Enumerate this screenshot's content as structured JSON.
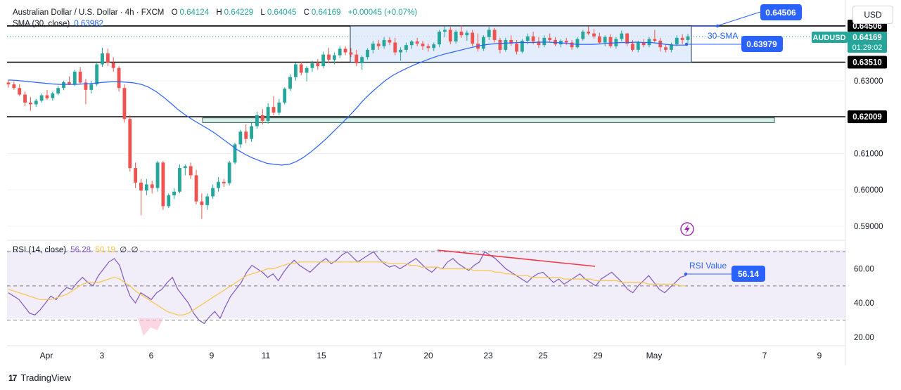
{
  "header": {
    "symbol_title": "Australian Dollar / U.S. Dollar · 4h · FXCM",
    "o_label": "O",
    "o_value": "0.64124",
    "h_label": "H",
    "h_value": "0.64229",
    "l_label": "L",
    "l_value": "0.64045",
    "c_label": "C",
    "c_value": "0.64169",
    "change": "+0.00045 (+0.07%)",
    "sma_label": "SMA (30, close)",
    "sma_value": "0.63982",
    "currency": "USD"
  },
  "rsi_legend": {
    "label": "RSI (14, close)",
    "rsi_value": "56.28",
    "ma_value": "50.19",
    "extra1": "∅",
    "extra2": "∅"
  },
  "annotations": {
    "level_top_label": "0.64506",
    "sma_note": "30-SMA",
    "sma_value_box": "0.63979",
    "rsi_note": "RSI Value",
    "rsi_value_box": "56.14",
    "symbol_tag": "AUDUSD",
    "price_tag": "0.64169",
    "countdown": "01:29:02",
    "level_mid_label": "0.63510",
    "level_low_label": "0.62009",
    "hidden_top_label": "0.64506"
  },
  "colors": {
    "up": "#26a69a",
    "down": "#ef5350",
    "sma": "#2962ff",
    "rsi": "#7e57c2",
    "rsi_ma": "#f7c548",
    "box_fill": "#dbe7fb",
    "box_stroke": "#1e3a5f",
    "zone_fill": "#d9ede9",
    "annotation": "#2962ff",
    "divergence": "#f23645"
  },
  "chart_data": [
    {
      "type": "candlestick",
      "title": "Australian Dollar / U.S. Dollar · 4h · FXCM",
      "ylim": [
        0.5865,
        0.6522
      ],
      "y_ticks": [
        "0.59000",
        "0.60000",
        "0.61000",
        "0.62000",
        "0.63000"
      ],
      "x_tick_labels": [
        "Apr",
        "3",
        "6",
        "9",
        "11",
        "15",
        "17",
        "20",
        "23",
        "25",
        "29",
        "May",
        "7",
        "9"
      ],
      "horizontal_levels": [
        0.64506,
        0.6351,
        0.62009
      ],
      "range_box": [
        0.6351,
        0.64506
      ],
      "support_zone": [
        0.6185,
        0.6198
      ],
      "candles_ohlc": [
        [
          0.6295,
          0.6302,
          0.6281,
          0.629
        ],
        [
          0.629,
          0.6298,
          0.6275,
          0.628
        ],
        [
          0.628,
          0.629,
          0.6258,
          0.6262
        ],
        [
          0.6262,
          0.627,
          0.623,
          0.624
        ],
        [
          0.624,
          0.6255,
          0.6218,
          0.6235
        ],
        [
          0.6235,
          0.625,
          0.6228,
          0.6245
        ],
        [
          0.6245,
          0.6265,
          0.624,
          0.626
        ],
        [
          0.626,
          0.6275,
          0.6248,
          0.6252
        ],
        [
          0.6252,
          0.627,
          0.6245,
          0.6265
        ],
        [
          0.6265,
          0.6285,
          0.626,
          0.628
        ],
        [
          0.628,
          0.63,
          0.6274,
          0.6296
        ],
        [
          0.6296,
          0.6312,
          0.6288,
          0.629
        ],
        [
          0.629,
          0.633,
          0.6285,
          0.6325
        ],
        [
          0.6325,
          0.6338,
          0.629,
          0.6295
        ],
        [
          0.6295,
          0.6305,
          0.6235,
          0.6275
        ],
        [
          0.6275,
          0.63,
          0.6265,
          0.629
        ],
        [
          0.629,
          0.6348,
          0.6285,
          0.6345
        ],
        [
          0.6345,
          0.639,
          0.6338,
          0.6375
        ],
        [
          0.6375,
          0.6388,
          0.634,
          0.635
        ],
        [
          0.635,
          0.6365,
          0.6325,
          0.6335
        ],
        [
          0.6335,
          0.634,
          0.627,
          0.628
        ],
        [
          0.628,
          0.629,
          0.6185,
          0.6195
        ],
        [
          0.6195,
          0.6205,
          0.605,
          0.606
        ],
        [
          0.606,
          0.6075,
          0.6005,
          0.602
        ],
        [
          0.602,
          0.603,
          0.593,
          0.5998
        ],
        [
          0.5998,
          0.603,
          0.5985,
          0.6015
        ],
        [
          0.6015,
          0.6025,
          0.599,
          0.6005
        ],
        [
          0.6005,
          0.608,
          0.5995,
          0.6075
        ],
        [
          0.6075,
          0.608,
          0.5945,
          0.5955
        ],
        [
          0.5955,
          0.599,
          0.595,
          0.5985
        ],
        [
          0.5985,
          0.6005,
          0.5975,
          0.5995
        ],
        [
          0.5995,
          0.607,
          0.599,
          0.606
        ],
        [
          0.606,
          0.607,
          0.604,
          0.6065
        ],
        [
          0.6065,
          0.6075,
          0.603,
          0.604
        ],
        [
          0.604,
          0.6055,
          0.596,
          0.5968
        ],
        [
          0.5968,
          0.599,
          0.592,
          0.5958
        ],
        [
          0.5958,
          0.599,
          0.5945,
          0.5982
        ],
        [
          0.5982,
          0.6015,
          0.5975,
          0.6005
        ],
        [
          0.6005,
          0.6035,
          0.5995,
          0.6022
        ],
        [
          0.6022,
          0.603,
          0.6008,
          0.6018
        ],
        [
          0.6018,
          0.608,
          0.6012,
          0.6075
        ],
        [
          0.6075,
          0.613,
          0.607,
          0.6125
        ],
        [
          0.6125,
          0.6165,
          0.6115,
          0.616
        ],
        [
          0.616,
          0.618,
          0.6128,
          0.614
        ],
        [
          0.614,
          0.6185,
          0.6132,
          0.6175
        ],
        [
          0.6175,
          0.6215,
          0.6168,
          0.6205
        ],
        [
          0.6205,
          0.6222,
          0.618,
          0.619
        ],
        [
          0.619,
          0.6238,
          0.6182,
          0.6228
        ],
        [
          0.6228,
          0.6258,
          0.6205,
          0.6212
        ],
        [
          0.6212,
          0.625,
          0.6205,
          0.624
        ],
        [
          0.624,
          0.6282,
          0.6235,
          0.6278
        ],
        [
          0.6278,
          0.6318,
          0.6272,
          0.631
        ],
        [
          0.631,
          0.635,
          0.63,
          0.6345
        ],
        [
          0.6345,
          0.6352,
          0.6315,
          0.6322
        ],
        [
          0.6322,
          0.634,
          0.6298,
          0.6335
        ],
        [
          0.6335,
          0.6355,
          0.6325,
          0.6348
        ],
        [
          0.6348,
          0.636,
          0.633,
          0.634
        ],
        [
          0.634,
          0.638,
          0.6335,
          0.6372
        ],
        [
          0.6372,
          0.639,
          0.635,
          0.6358
        ],
        [
          0.6358,
          0.6378,
          0.6345,
          0.637
        ],
        [
          0.637,
          0.6395,
          0.6362,
          0.6388
        ],
        [
          0.6388,
          0.6395,
          0.637,
          0.6378
        ],
        [
          0.6378,
          0.639,
          0.6365,
          0.6372
        ],
        [
          0.6372,
          0.6385,
          0.634,
          0.6348
        ],
        [
          0.6348,
          0.637,
          0.633,
          0.6365
        ],
        [
          0.6365,
          0.639,
          0.6358,
          0.6385
        ],
        [
          0.6385,
          0.641,
          0.6375,
          0.6402
        ],
        [
          0.6402,
          0.6412,
          0.6385,
          0.6395
        ],
        [
          0.6395,
          0.642,
          0.6388,
          0.6412
        ],
        [
          0.6412,
          0.642,
          0.6398,
          0.6405
        ],
        [
          0.6405,
          0.6418,
          0.637,
          0.6378
        ],
        [
          0.6378,
          0.6392,
          0.6355,
          0.6385
        ],
        [
          0.6385,
          0.6405,
          0.6378,
          0.6398
        ],
        [
          0.6398,
          0.6412,
          0.6388,
          0.6408
        ],
        [
          0.6408,
          0.6418,
          0.6395,
          0.6402
        ],
        [
          0.6402,
          0.641,
          0.6385,
          0.6395
        ],
        [
          0.6395,
          0.6402,
          0.638,
          0.639
        ],
        [
          0.639,
          0.6405,
          0.6382,
          0.64
        ],
        [
          0.64,
          0.644,
          0.6392,
          0.6435
        ],
        [
          0.6435,
          0.645,
          0.642,
          0.644
        ],
        [
          0.644,
          0.6448,
          0.64,
          0.6408
        ],
        [
          0.6408,
          0.644,
          0.6402,
          0.6435
        ],
        [
          0.6435,
          0.6452,
          0.6418,
          0.6425
        ],
        [
          0.6425,
          0.6438,
          0.641,
          0.6432
        ],
        [
          0.6432,
          0.644,
          0.6395,
          0.6402
        ],
        [
          0.6402,
          0.643,
          0.638,
          0.6388
        ],
        [
          0.6388,
          0.6425,
          0.6382,
          0.642
        ],
        [
          0.642,
          0.6448,
          0.6412,
          0.644
        ],
        [
          0.644,
          0.6445,
          0.6405,
          0.6412
        ],
        [
          0.6412,
          0.6418,
          0.6375,
          0.6385
        ],
        [
          0.6385,
          0.6418,
          0.638,
          0.6412
        ],
        [
          0.6412,
          0.6425,
          0.6395,
          0.6402
        ],
        [
          0.6402,
          0.6412,
          0.6372,
          0.638
        ],
        [
          0.638,
          0.6415,
          0.6375,
          0.641
        ],
        [
          0.641,
          0.643,
          0.64,
          0.6422
        ],
        [
          0.6422,
          0.6435,
          0.64,
          0.6408
        ],
        [
          0.6408,
          0.642,
          0.639,
          0.6398
        ],
        [
          0.6398,
          0.6425,
          0.6392,
          0.6418
        ],
        [
          0.6418,
          0.643,
          0.6405,
          0.6412
        ],
        [
          0.6412,
          0.642,
          0.6395,
          0.64
        ],
        [
          0.64,
          0.6415,
          0.6392,
          0.641
        ],
        [
          0.641,
          0.6418,
          0.6398,
          0.6405
        ],
        [
          0.6405,
          0.6412,
          0.6385,
          0.6392
        ],
        [
          0.6392,
          0.642,
          0.6388,
          0.6415
        ],
        [
          0.6415,
          0.644,
          0.641,
          0.6435
        ],
        [
          0.6435,
          0.645,
          0.6425,
          0.643
        ],
        [
          0.643,
          0.6442,
          0.6415,
          0.6422
        ],
        [
          0.6422,
          0.6432,
          0.64,
          0.6405
        ],
        [
          0.6405,
          0.6425,
          0.6395,
          0.642
        ],
        [
          0.642,
          0.6428,
          0.639,
          0.6395
        ],
        [
          0.6395,
          0.642,
          0.6388,
          0.6415
        ],
        [
          0.6415,
          0.6438,
          0.6408,
          0.643
        ],
        [
          0.643,
          0.6432,
          0.6395,
          0.6402
        ],
        [
          0.6402,
          0.6412,
          0.638,
          0.6385
        ],
        [
          0.6385,
          0.641,
          0.6378,
          0.6405
        ],
        [
          0.6405,
          0.6415,
          0.6392,
          0.6398
        ],
        [
          0.6398,
          0.642,
          0.6392,
          0.6415
        ],
        [
          0.6415,
          0.644,
          0.6405,
          0.641
        ],
        [
          0.641,
          0.6418,
          0.638,
          0.6392
        ],
        [
          0.6392,
          0.64,
          0.6378,
          0.6385
        ],
        [
          0.6385,
          0.6405,
          0.6378,
          0.64
        ],
        [
          0.64,
          0.6425,
          0.6395,
          0.6418
        ],
        [
          0.6418,
          0.6428,
          0.64,
          0.6412
        ],
        [
          0.6412,
          0.6429,
          0.6404,
          0.6422
        ]
      ],
      "sma_30": [
        0.6302,
        0.6301,
        0.6299,
        0.6297,
        0.6295,
        0.6293,
        0.6291,
        0.629,
        0.629,
        0.629,
        0.6291,
        0.6292,
        0.6294,
        0.6296,
        0.6297,
        0.6297,
        0.6296,
        0.6294,
        0.629,
        0.6282,
        0.627,
        0.6255,
        0.6238,
        0.622,
        0.6205,
        0.6192,
        0.618,
        0.6168,
        0.6155,
        0.614,
        0.6125,
        0.611,
        0.6098,
        0.6088,
        0.608,
        0.6073,
        0.607,
        0.6068,
        0.607,
        0.6078,
        0.609,
        0.6105,
        0.6122,
        0.614,
        0.616,
        0.618,
        0.62,
        0.6222,
        0.6245,
        0.6265,
        0.6283,
        0.63,
        0.6314,
        0.6325,
        0.6335,
        0.6344,
        0.6352,
        0.636,
        0.6367,
        0.6373,
        0.6378,
        0.6383,
        0.6388,
        0.6393,
        0.6397,
        0.64,
        0.6402,
        0.6403,
        0.6404,
        0.6405,
        0.6405,
        0.6405,
        0.6406,
        0.6406,
        0.6405,
        0.6404,
        0.6402,
        0.64,
        0.64,
        0.64,
        0.6401,
        0.6403,
        0.6404,
        0.6405,
        0.6405,
        0.6406,
        0.6405,
        0.6405,
        0.6403,
        0.64,
        0.6398,
        0.6398,
        0.6398
      ]
    },
    {
      "type": "line",
      "title": "RSI (14, close)",
      "ylim": [
        15,
        75
      ],
      "y_ticks": [
        "20.00",
        "40.00",
        "60.00"
      ],
      "bands": [
        30,
        50,
        70
      ],
      "series": [
        {
          "name": "RSI (14, close)",
          "values": [
            46,
            44,
            42,
            38,
            34,
            33,
            36,
            40,
            44,
            42,
            46,
            49,
            48,
            52,
            55,
            52,
            50,
            56,
            60,
            64,
            66,
            62,
            52,
            44,
            40,
            46,
            44,
            42,
            46,
            48,
            52,
            55,
            48,
            44,
            40,
            34,
            30,
            28,
            32,
            35,
            31,
            38,
            44,
            48,
            52,
            58,
            62,
            60,
            58,
            55,
            57,
            53,
            58,
            62,
            65,
            62,
            60,
            58,
            61,
            64,
            66,
            63,
            65,
            68,
            70,
            67,
            64,
            66,
            68,
            70,
            66,
            63,
            61,
            62,
            60,
            62,
            64,
            66,
            63,
            60,
            58,
            61,
            60,
            64,
            66,
            63,
            61,
            59,
            62,
            64,
            70,
            68,
            66,
            63,
            60,
            58,
            56,
            54,
            52,
            55,
            57,
            58,
            55,
            52,
            54,
            51,
            53,
            55,
            57,
            54,
            52,
            50,
            54,
            56,
            58,
            55,
            52,
            48,
            46,
            50,
            53,
            56,
            52,
            48,
            46,
            49,
            52,
            55,
            56
          ]
        },
        {
          "name": "RSI-based MA",
          "values": [
            48,
            47,
            46,
            45,
            44,
            43,
            42,
            42,
            42,
            43,
            44,
            45,
            47,
            49,
            51,
            52,
            52,
            52,
            53,
            54,
            55,
            54,
            52,
            50,
            47,
            45,
            43,
            41,
            39,
            37,
            35,
            34,
            33,
            33,
            34,
            36,
            38,
            40,
            42,
            44,
            46,
            48,
            50,
            52,
            54,
            56,
            57,
            58,
            59,
            60,
            60,
            61,
            62,
            63,
            63,
            64,
            64,
            64,
            64,
            64,
            64,
            64,
            64,
            64,
            64,
            64,
            64,
            64,
            64,
            64,
            64,
            64,
            63,
            63,
            63,
            63,
            62,
            62,
            61,
            61,
            61,
            61,
            60,
            60,
            60,
            60,
            60,
            60,
            59,
            59,
            59,
            59,
            58,
            58,
            57,
            57,
            56,
            56,
            56,
            55,
            55,
            55,
            55,
            55,
            55,
            54,
            54,
            54,
            54,
            54,
            54,
            53,
            53,
            53,
            53,
            53,
            52,
            52,
            52,
            52,
            52,
            51,
            51,
            51,
            51,
            51,
            51,
            50,
            50
          ]
        }
      ]
    }
  ]
}
